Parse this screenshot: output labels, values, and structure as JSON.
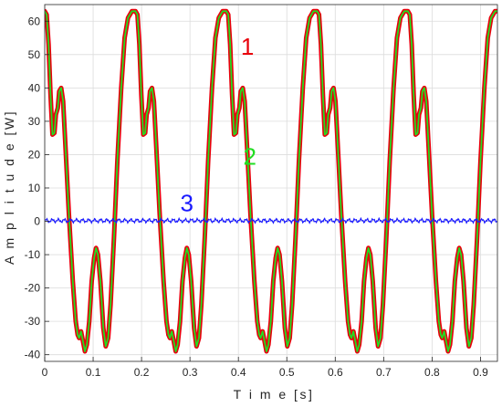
{
  "chart_data": {
    "type": "line",
    "title": "",
    "xlabel": "T i m e [s]",
    "ylabel": "A m p l i t u d e [W]",
    "xlim": [
      0,
      0.935
    ],
    "ylim": [
      -42,
      65
    ],
    "xticks": [
      "0",
      "0.1",
      "0.2",
      "0.3",
      "0.4",
      "0.5",
      "0.6",
      "0.7",
      "0.8",
      "0.9"
    ],
    "yticks": [
      "60",
      "50",
      "40",
      "30",
      "20",
      "10",
      "0",
      "-10",
      "-20",
      "-30",
      "-40"
    ],
    "grid": true,
    "legend": "none",
    "period": 0.1875,
    "series": [
      {
        "name": "1",
        "color": "#e8000b",
        "cycle_points": [
          [
            0.0,
            63.0
          ],
          [
            0.004,
            62.0
          ],
          [
            0.008,
            53.0
          ],
          [
            0.012,
            38.0
          ],
          [
            0.016,
            26.0
          ],
          [
            0.02,
            26.5
          ],
          [
            0.023,
            32.0
          ],
          [
            0.027,
            34.0
          ],
          [
            0.03,
            39.0
          ],
          [
            0.034,
            40.0
          ],
          [
            0.038,
            36.0
          ],
          [
            0.043,
            22.0
          ],
          [
            0.05,
            2.0
          ],
          [
            0.058,
            -18.0
          ],
          [
            0.064,
            -30.0
          ],
          [
            0.068,
            -34.0
          ],
          [
            0.071,
            -35.0
          ],
          [
            0.075,
            -33.0
          ],
          [
            0.079,
            -36.0
          ],
          [
            0.083,
            -39.0
          ],
          [
            0.087,
            -37.0
          ],
          [
            0.092,
            -30.0
          ],
          [
            0.097,
            -18.0
          ],
          [
            0.102,
            -11.0
          ],
          [
            0.106,
            -8.0
          ],
          [
            0.11,
            -10.0
          ],
          [
            0.115,
            -18.0
          ],
          [
            0.121,
            -32.0
          ],
          [
            0.126,
            -37.5
          ],
          [
            0.131,
            -35.0
          ],
          [
            0.136,
            -25.0
          ],
          [
            0.143,
            -5.0
          ],
          [
            0.15,
            18.0
          ],
          [
            0.158,
            40.0
          ],
          [
            0.165,
            55.0
          ],
          [
            0.172,
            61.0
          ],
          [
            0.18,
            63.0
          ],
          [
            0.1875,
            63.0
          ]
        ]
      },
      {
        "name": "2",
        "color": "#22dd22",
        "cycle_points": [
          [
            0.0,
            63.0
          ],
          [
            0.004,
            62.0
          ],
          [
            0.008,
            53.0
          ],
          [
            0.012,
            38.0
          ],
          [
            0.016,
            26.0
          ],
          [
            0.02,
            26.5
          ],
          [
            0.023,
            32.0
          ],
          [
            0.027,
            34.0
          ],
          [
            0.03,
            39.0
          ],
          [
            0.034,
            40.0
          ],
          [
            0.038,
            36.0
          ],
          [
            0.043,
            22.0
          ],
          [
            0.05,
            2.0
          ],
          [
            0.058,
            -18.0
          ],
          [
            0.064,
            -30.0
          ],
          [
            0.068,
            -34.0
          ],
          [
            0.071,
            -35.0
          ],
          [
            0.075,
            -33.0
          ],
          [
            0.079,
            -36.0
          ],
          [
            0.083,
            -39.0
          ],
          [
            0.087,
            -37.0
          ],
          [
            0.092,
            -30.0
          ],
          [
            0.097,
            -18.0
          ],
          [
            0.102,
            -11.0
          ],
          [
            0.106,
            -8.0
          ],
          [
            0.11,
            -10.0
          ],
          [
            0.115,
            -18.0
          ],
          [
            0.121,
            -32.0
          ],
          [
            0.126,
            -37.5
          ],
          [
            0.131,
            -35.0
          ],
          [
            0.136,
            -25.0
          ],
          [
            0.143,
            -5.0
          ],
          [
            0.15,
            18.0
          ],
          [
            0.158,
            40.0
          ],
          [
            0.165,
            55.0
          ],
          [
            0.172,
            61.0
          ],
          [
            0.18,
            63.0
          ],
          [
            0.1875,
            63.0
          ]
        ]
      },
      {
        "name": "3",
        "color": "#1a1aff",
        "amplitude": 0.7,
        "offset": 0.2
      }
    ],
    "annotations": [
      {
        "text": "1",
        "x": 0.405,
        "y": 50,
        "color": "#e8000b"
      },
      {
        "text": "2",
        "x": 0.41,
        "y": 17,
        "color": "#22dd22"
      },
      {
        "text": "3",
        "x": 0.28,
        "y": 3,
        "color": "#1a1aff"
      }
    ]
  }
}
